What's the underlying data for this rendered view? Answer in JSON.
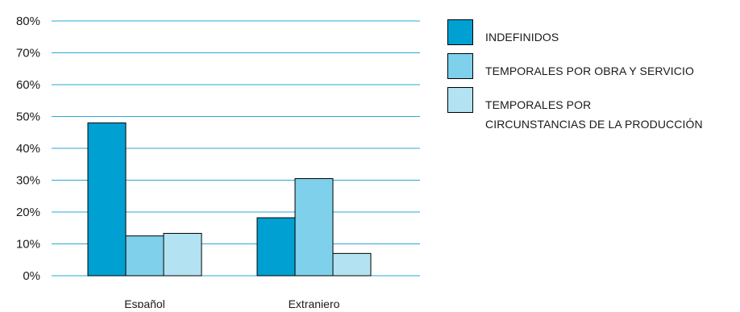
{
  "chart_data": {
    "type": "bar",
    "categories": [
      "Español",
      "Extranjero"
    ],
    "series": [
      {
        "name": "INDEFINIDOS",
        "values": [
          48,
          18.2
        ],
        "color": "#00a0d2"
      },
      {
        "name": "TEMPORALES POR OBRA Y SERVICIO",
        "values": [
          12.5,
          30.5
        ],
        "color": "#7fd0ea"
      },
      {
        "name": "TEMPORALES POR CIRCUNSTANCIAS DE LA PRODUCCIÓN",
        "name_lines": [
          "TEMPORALES POR",
          "CIRCUNSTANCIAS DE LA PRODUCCIÓN"
        ],
        "values": [
          13.3,
          7
        ],
        "color": "#b3e3f3"
      }
    ],
    "yticks": [
      "0%",
      "10%",
      "20%",
      "30%",
      "40%",
      "50%",
      "60%",
      "70%",
      "80%"
    ],
    "ylim": [
      0,
      80
    ],
    "grid": true,
    "gridline_color": "#29a8d4",
    "legend_position": "right",
    "title": "",
    "xlabel": "",
    "ylabel": ""
  }
}
